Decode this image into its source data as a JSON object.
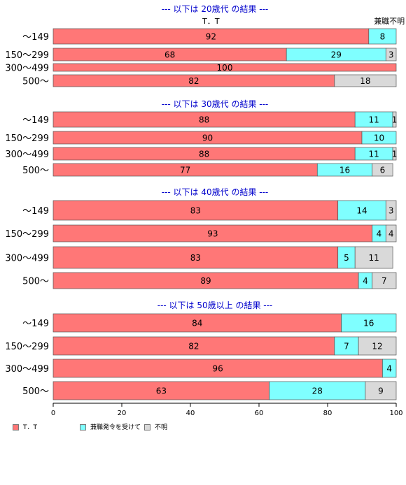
{
  "chart_data": {
    "type": "bar",
    "orientation": "horizontal",
    "stacked": true,
    "xlim": [
      0,
      100
    ],
    "x_ticks": [
      0,
      20,
      40,
      60,
      80,
      100
    ],
    "colors": {
      "series_0": "#ff7777",
      "series_1": "#7fffff",
      "series_2": "#d9d9d9",
      "group_title": "#0000cc"
    },
    "top_labels": [
      {
        "text": "T．T",
        "x": 46
      },
      {
        "text": "兼職不明",
        "x": 98
      }
    ],
    "legend": [
      {
        "name": "T．T",
        "color": "#ff7777"
      },
      {
        "name": "兼職発令を受けて",
        "color": "#7fffff"
      },
      {
        "name": "不明",
        "color": "#d9d9d9"
      }
    ],
    "groups": [
      {
        "title": "--- 以下は 20歳代 の結果 ---",
        "categories": [
          "～149",
          "150～299",
          "300～499",
          "500～"
        ],
        "rows": [
          [
            92,
            8,
            0
          ],
          [
            68,
            29,
            3
          ],
          [
            100,
            0,
            0
          ],
          [
            82,
            0,
            18
          ]
        ]
      },
      {
        "title": "--- 以下は 30歳代 の結果 ---",
        "categories": [
          "～149",
          "150～299",
          "300～499",
          "500～"
        ],
        "rows": [
          [
            88,
            11,
            1
          ],
          [
            90,
            10,
            0
          ],
          [
            88,
            11,
            1
          ],
          [
            77,
            16,
            6
          ]
        ]
      },
      {
        "title": "--- 以下は 40歳代 の結果 ---",
        "categories": [
          "～149",
          "150～299",
          "300～499",
          "500～"
        ],
        "rows": [
          [
            83,
            14,
            3
          ],
          [
            93,
            4,
            4
          ],
          [
            83,
            5,
            11
          ],
          [
            89,
            4,
            7
          ]
        ]
      },
      {
        "title": "--- 以下は 50歳以上 の結果 ---",
        "categories": [
          "～149",
          "150～299",
          "300～499",
          "500～"
        ],
        "rows": [
          [
            84,
            16,
            0
          ],
          [
            82,
            7,
            12
          ],
          [
            96,
            4,
            0
          ],
          [
            63,
            28,
            9
          ]
        ]
      }
    ]
  }
}
